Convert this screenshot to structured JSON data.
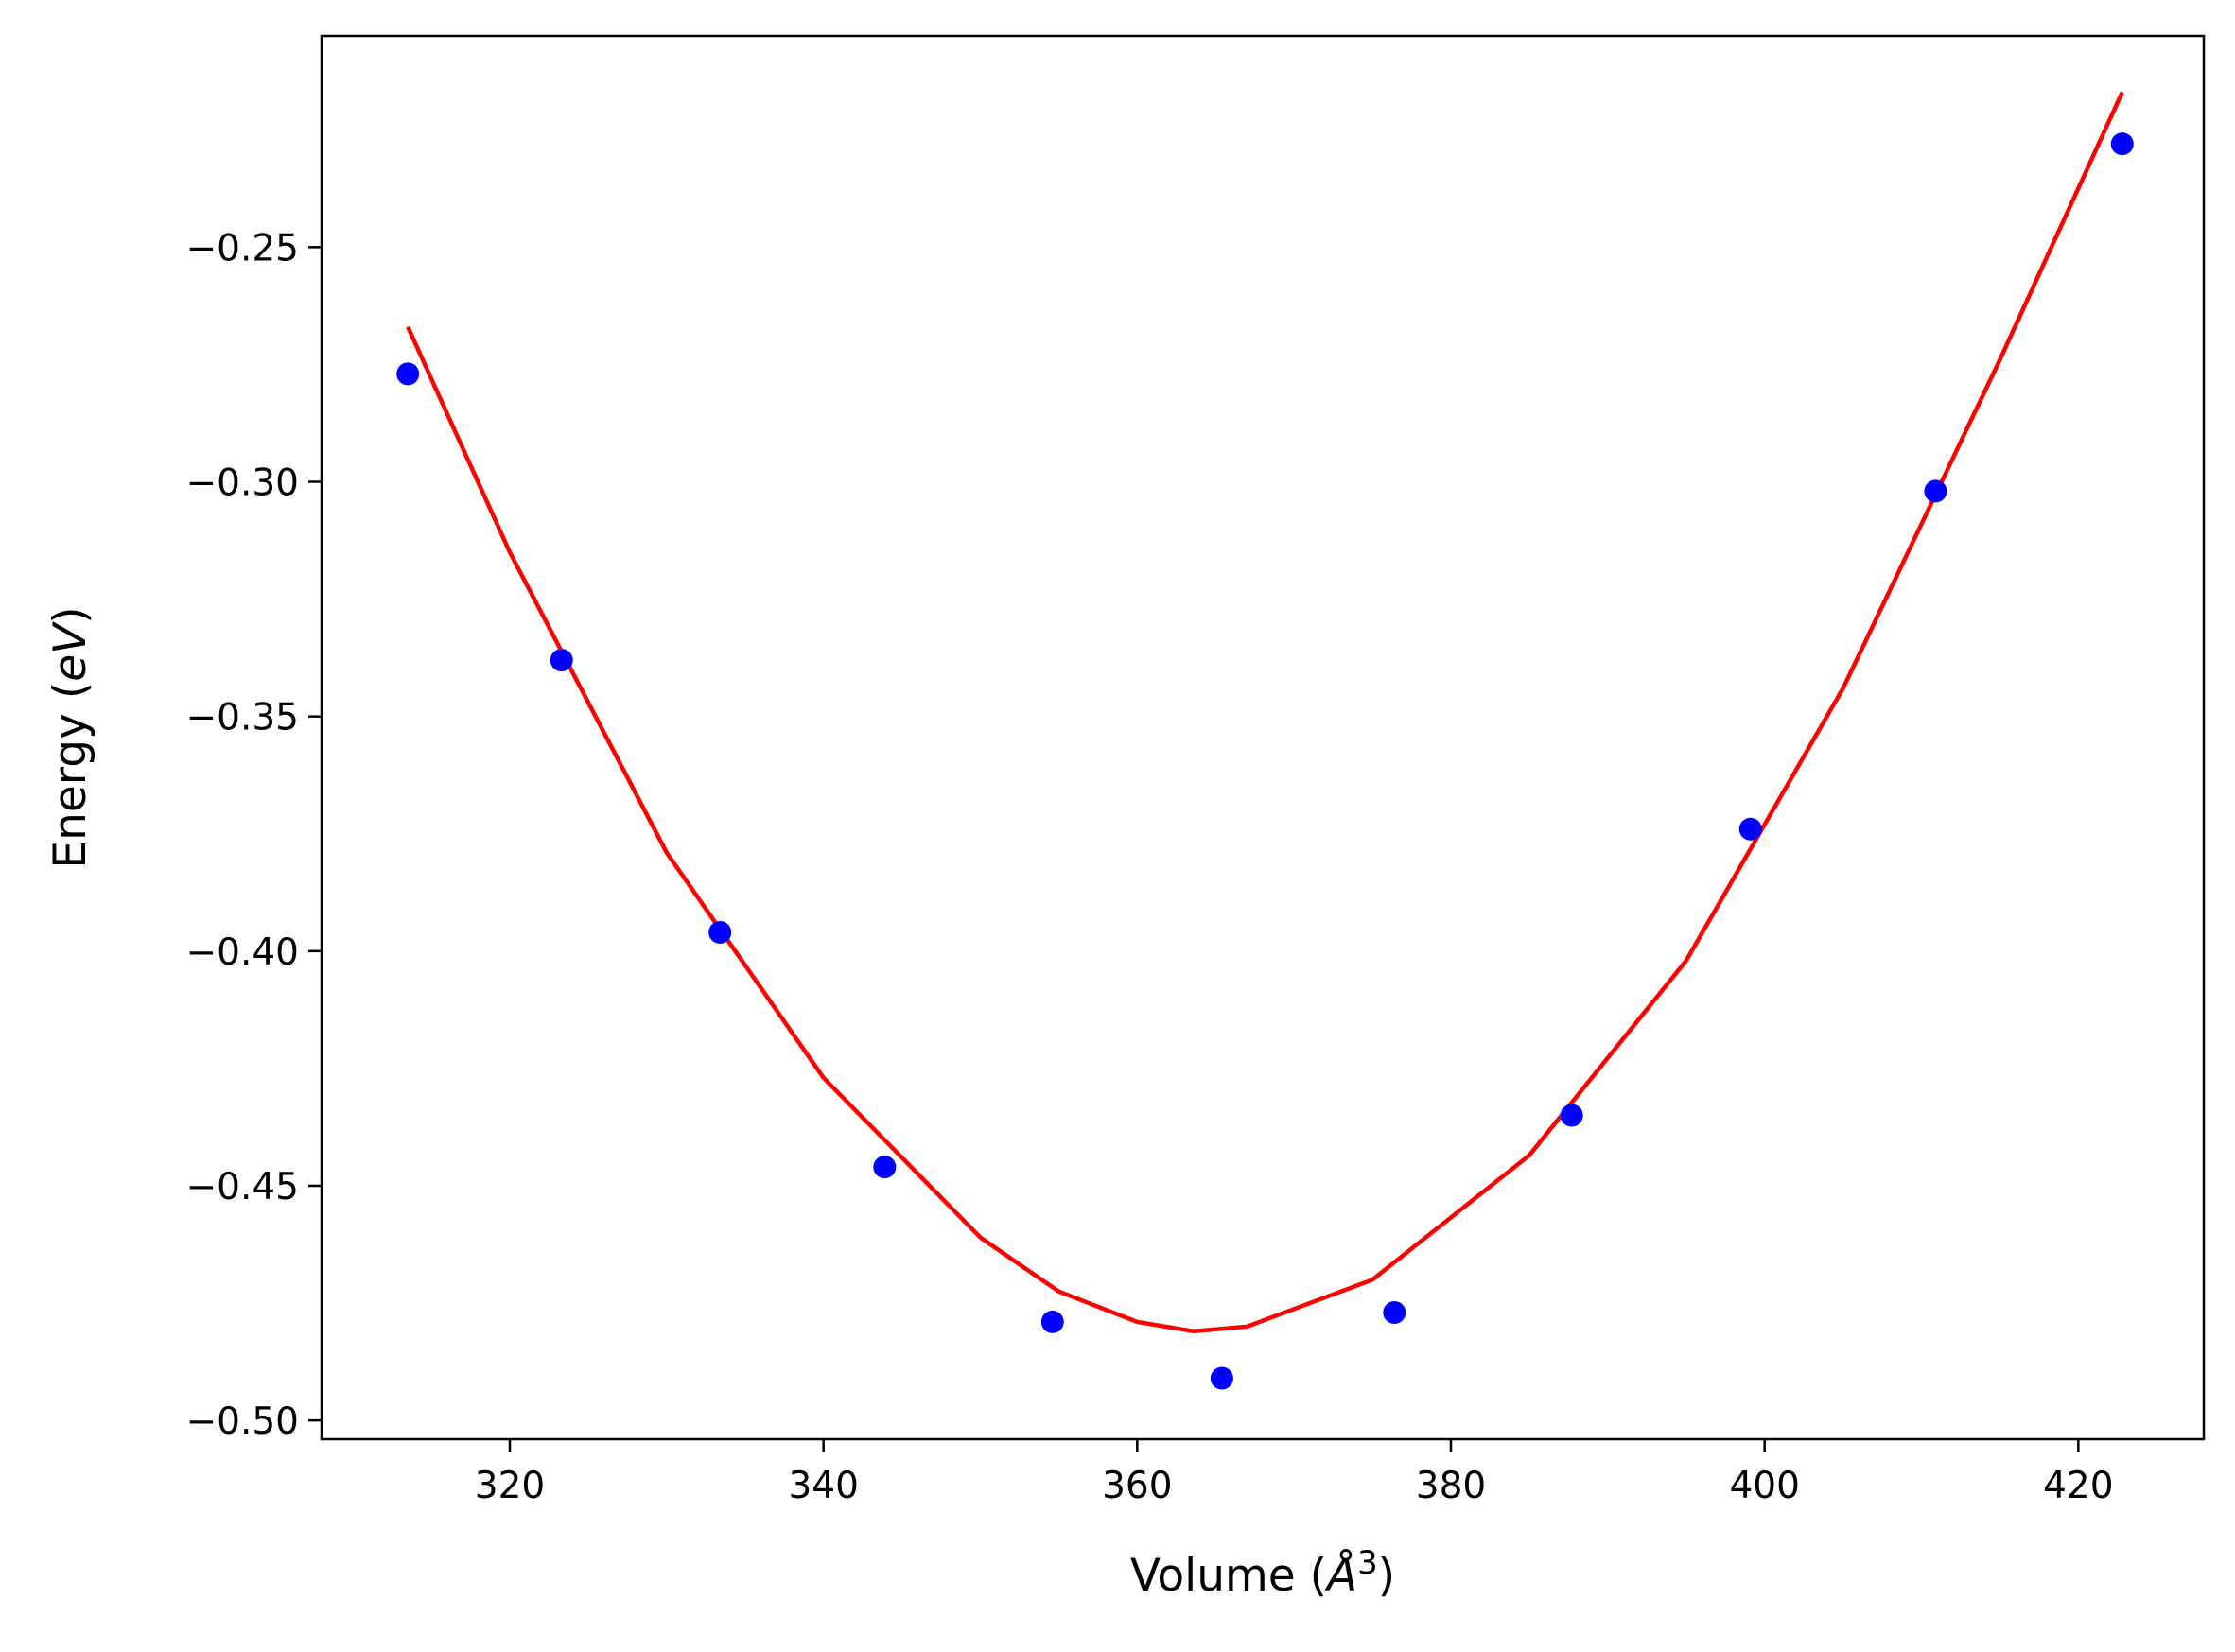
{
  "chart_data": {
    "type": "scatter",
    "xlabel": "Volume (Å³)",
    "ylabel": "Energy (eV)",
    "xlabel_parts": {
      "prefix": "Volume (",
      "symbol": "Å",
      "power": "3",
      "suffix": ")"
    },
    "ylabel_parts": {
      "prefix": "Energy (",
      "symbol": "eV",
      "suffix": ")"
    },
    "xlim": [
      308,
      428
    ],
    "ylim": [
      -0.504,
      -0.205
    ],
    "xticks": [
      320,
      340,
      360,
      380,
      400,
      420
    ],
    "xtick_labels": [
      "320",
      "340",
      "360",
      "380",
      "400",
      "420"
    ],
    "yticks": [
      -0.5,
      -0.45,
      -0.4,
      -0.35,
      -0.3,
      -0.25
    ],
    "ytick_labels": [
      "−0.50",
      "−0.45",
      "−0.40",
      "−0.35",
      "−0.30",
      "−0.25"
    ],
    "grid": false,
    "series": [
      {
        "type": "scatter",
        "color": "#0000ff",
        "x": [
          313.5,
          323.3,
          333.4,
          343.9,
          354.6,
          365.4,
          376.4,
          387.7,
          399.1,
          410.9,
          422.8
        ],
        "y": [
          -0.277,
          -0.338,
          -0.396,
          -0.446,
          -0.479,
          -0.491,
          -0.477,
          -0.435,
          -0.374,
          -0.302,
          -0.228
        ]
      },
      {
        "type": "line",
        "color": "#ff0000",
        "x": [
          313.5,
          320,
          330,
          340,
          350,
          355,
          360,
          363.6,
          367,
          375,
          385,
          395,
          405,
          415,
          422.8
        ],
        "y": [
          -0.267,
          -0.315,
          -0.379,
          -0.427,
          -0.461,
          -0.4725,
          -0.479,
          -0.481,
          -0.48,
          -0.47,
          -0.4435,
          -0.402,
          -0.344,
          -0.274,
          -0.217
        ]
      }
    ]
  }
}
